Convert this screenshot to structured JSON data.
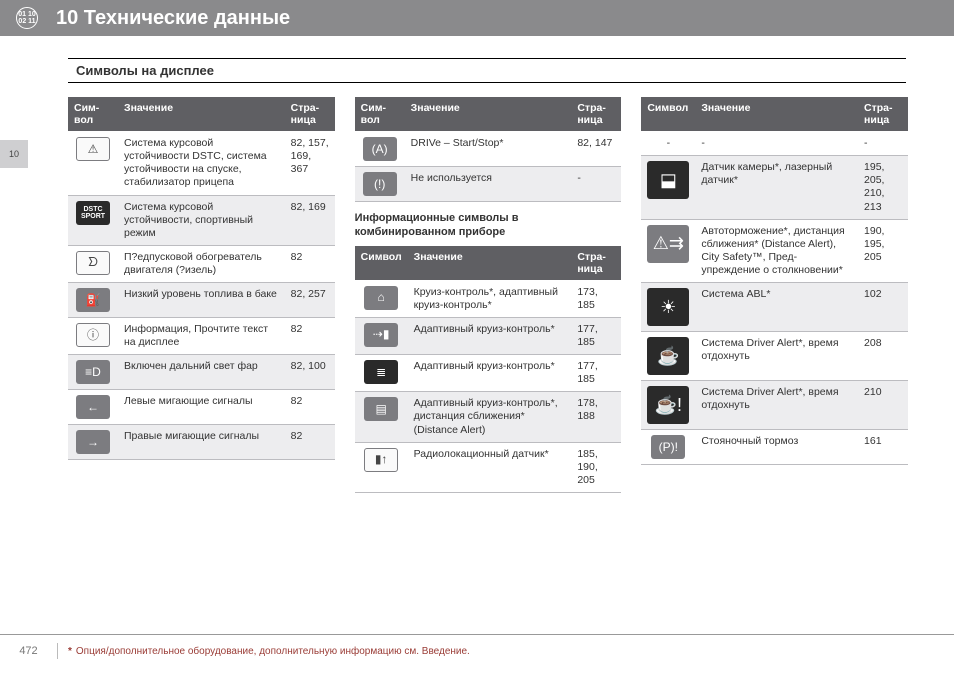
{
  "header": {
    "iconText": "01 10\n02 11",
    "title": "10 Технические данные"
  },
  "subheader": "Символы на дисплее",
  "sideTab": "10",
  "tableHeaders": {
    "symbol_short": "Сим-\nвол",
    "symbol": "Символ",
    "meaning": "Значение",
    "page": "Стра-\nница"
  },
  "col1": [
    {
      "icon": "⚠",
      "iconClass": "white",
      "meaning": "Система курсовой устойчивости DSTC, система устойчивости на спуске, стабили­затор прицепа",
      "pages": "82, 157, 169, 367"
    },
    {
      "icon": "DSTC\nSPORT",
      "iconClass": "dstc",
      "meaning": "Система курсовой устойчивости, спортивный режим",
      "pages": "82, 169"
    },
    {
      "icon": "ᗤ",
      "iconClass": "white",
      "meaning": "П?едпусковой обогреватель дви­гателя (?изель)",
      "pages": "82"
    },
    {
      "icon": "⛽",
      "iconClass": "grey",
      "meaning": "Низкий уровень топлива в баке",
      "pages": "82, 257"
    },
    {
      "icon": "ⓘ",
      "iconClass": "white",
      "meaning": "Информация, Прочтите текст на дисплее",
      "pages": "82"
    },
    {
      "icon": "≡D",
      "iconClass": "grey",
      "meaning": "Включен дальний свет фар",
      "pages": "82, 100"
    },
    {
      "icon": "←",
      "iconClass": "grey",
      "meaning": "Левые мигающие сигналы",
      "pages": "82"
    },
    {
      "icon": "→",
      "iconClass": "grey",
      "meaning": "Правые мигающие сигналы",
      "pages": "82"
    }
  ],
  "col2_top": [
    {
      "icon": "(A)",
      "iconClass": "grey",
      "meaning": "DRIVe – Start/Stop*",
      "pages": "82, 147"
    },
    {
      "icon": "(!)",
      "iconClass": "grey",
      "meaning": "Не используется",
      "pages": "-"
    }
  ],
  "col2_title": "Информационные символы в комбинированном приборе",
  "col2_bottom": [
    {
      "icon": "⌂",
      "iconClass": "grey",
      "meaning": "Круиз-контроль*, адаптивный круиз-контроль*",
      "pages": "173, 185"
    },
    {
      "icon": "⇢▮",
      "iconClass": "grey",
      "meaning": "Адаптивный круиз-контроль*",
      "pages": "177, 185"
    },
    {
      "icon": "≣",
      "iconClass": "dark",
      "meaning": "Адаптивный круиз-контроль*",
      "pages": "177, 185"
    },
    {
      "icon": "▤",
      "iconClass": "grey",
      "meaning": "Адаптивный круиз-контроль*, дистанция сбли­жения* (Distance Alert)",
      "pages": "178, 188"
    },
    {
      "icon": "▮↑",
      "iconClass": "white",
      "meaning": "Радиолокацион­ный датчик*",
      "pages": "185, 190, 205"
    }
  ],
  "col3": [
    {
      "icon": "-",
      "iconClass": "",
      "plain": true,
      "meaning": "-",
      "pages": "-"
    },
    {
      "icon": "⬓",
      "iconClass": "dark big",
      "meaning": "Датчик камеры*, лазерный датчик*",
      "pages": "195, 205, 210, 213"
    },
    {
      "icon": "⚠⇉",
      "iconClass": "grey big",
      "meaning": "Автоторможение*, дистанция сбли­жения* (Distance Alert), City Safety™, Пред­упреждение о столкновении*",
      "pages": "190, 195, 205"
    },
    {
      "icon": "☀",
      "iconClass": "dark big",
      "meaning": "Система ABL*",
      "pages": "102"
    },
    {
      "icon": "☕",
      "iconClass": "dark big",
      "meaning": "Система Driver Alert*, время отдохнуть",
      "pages": "208"
    },
    {
      "icon": "☕!",
      "iconClass": "dark big",
      "meaning": "Система Driver Alert*, время отдохнуть",
      "pages": "210"
    },
    {
      "icon": "(P)!",
      "iconClass": "grey",
      "meaning": "Стояночный тор­моз",
      "pages": "161"
    }
  ],
  "footer": {
    "pageNumber": "472",
    "noteStar": "*",
    "noteText": "Опция/дополнительное оборудование, дополнительную информацию см. Введение."
  }
}
